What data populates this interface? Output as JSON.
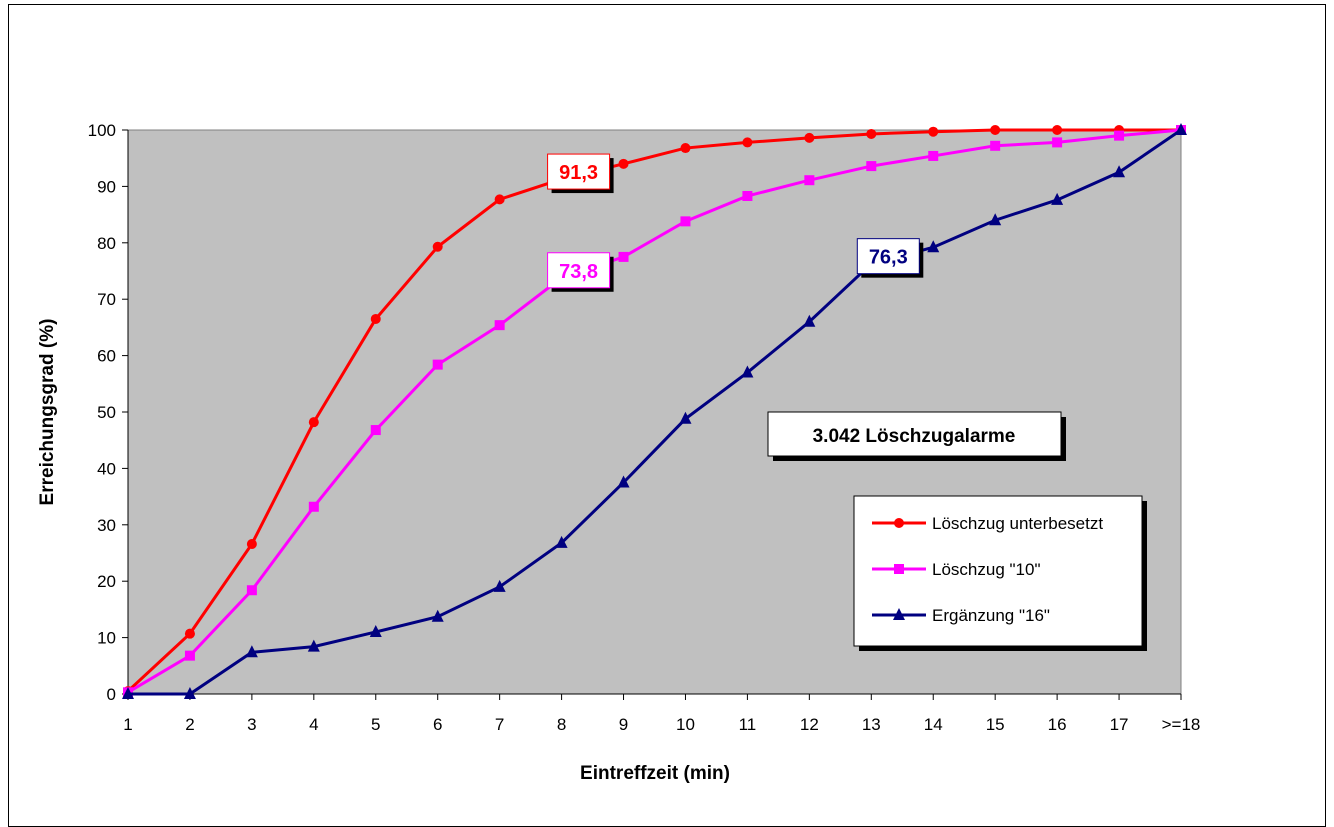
{
  "chart_data": {
    "type": "line",
    "xlabel": "Eintreffzeit (min)",
    "ylabel": "Erreichungsgrad (%)",
    "categories": [
      "1",
      "2",
      "3",
      "4",
      "5",
      "6",
      "7",
      "8",
      "9",
      "10",
      "11",
      "12",
      "13",
      "14",
      "15",
      "16",
      "17",
      ">=18"
    ],
    "ylim": [
      0,
      100
    ],
    "yticks": [
      0,
      10,
      20,
      30,
      40,
      50,
      60,
      70,
      80,
      90,
      100
    ],
    "plot_background": "#c0c0c0",
    "grid": false,
    "legend_position": "inside-right",
    "series": [
      {
        "name": "Löschzug unterbesetzt",
        "color": "#ff0000",
        "marker": "circle",
        "values": [
          0.5,
          10.7,
          26.6,
          48.2,
          66.5,
          79.3,
          87.7,
          91.3,
          94.0,
          96.8,
          97.8,
          98.6,
          99.3,
          99.7,
          100.0,
          100.0,
          100.0,
          100.0
        ]
      },
      {
        "name": "Löschzug \"10\"",
        "color": "#ff00ff",
        "marker": "square",
        "values": [
          0.3,
          6.8,
          18.4,
          33.2,
          46.8,
          58.4,
          65.4,
          73.8,
          77.5,
          83.8,
          88.3,
          91.1,
          93.6,
          95.4,
          97.2,
          97.8,
          99.0,
          100.0
        ]
      },
      {
        "name": "Ergänzung \"16\"",
        "color": "#000080",
        "marker": "triangle",
        "values": [
          0.0,
          0.0,
          7.4,
          8.4,
          11.0,
          13.7,
          19.0,
          26.8,
          37.5,
          48.8,
          57.0,
          66.0,
          76.3,
          79.2,
          84.0,
          87.6,
          92.5,
          100.0
        ]
      }
    ],
    "annotations": [
      {
        "text": "91,3",
        "series": 0,
        "index": 7,
        "color": "#ff0000"
      },
      {
        "text": "73,8",
        "series": 1,
        "index": 7,
        "color": "#ff00ff"
      },
      {
        "text": "76,3",
        "series": 2,
        "index": 12,
        "color": "#000080"
      }
    ],
    "info_box": "3.042 Löschzugalarme"
  }
}
